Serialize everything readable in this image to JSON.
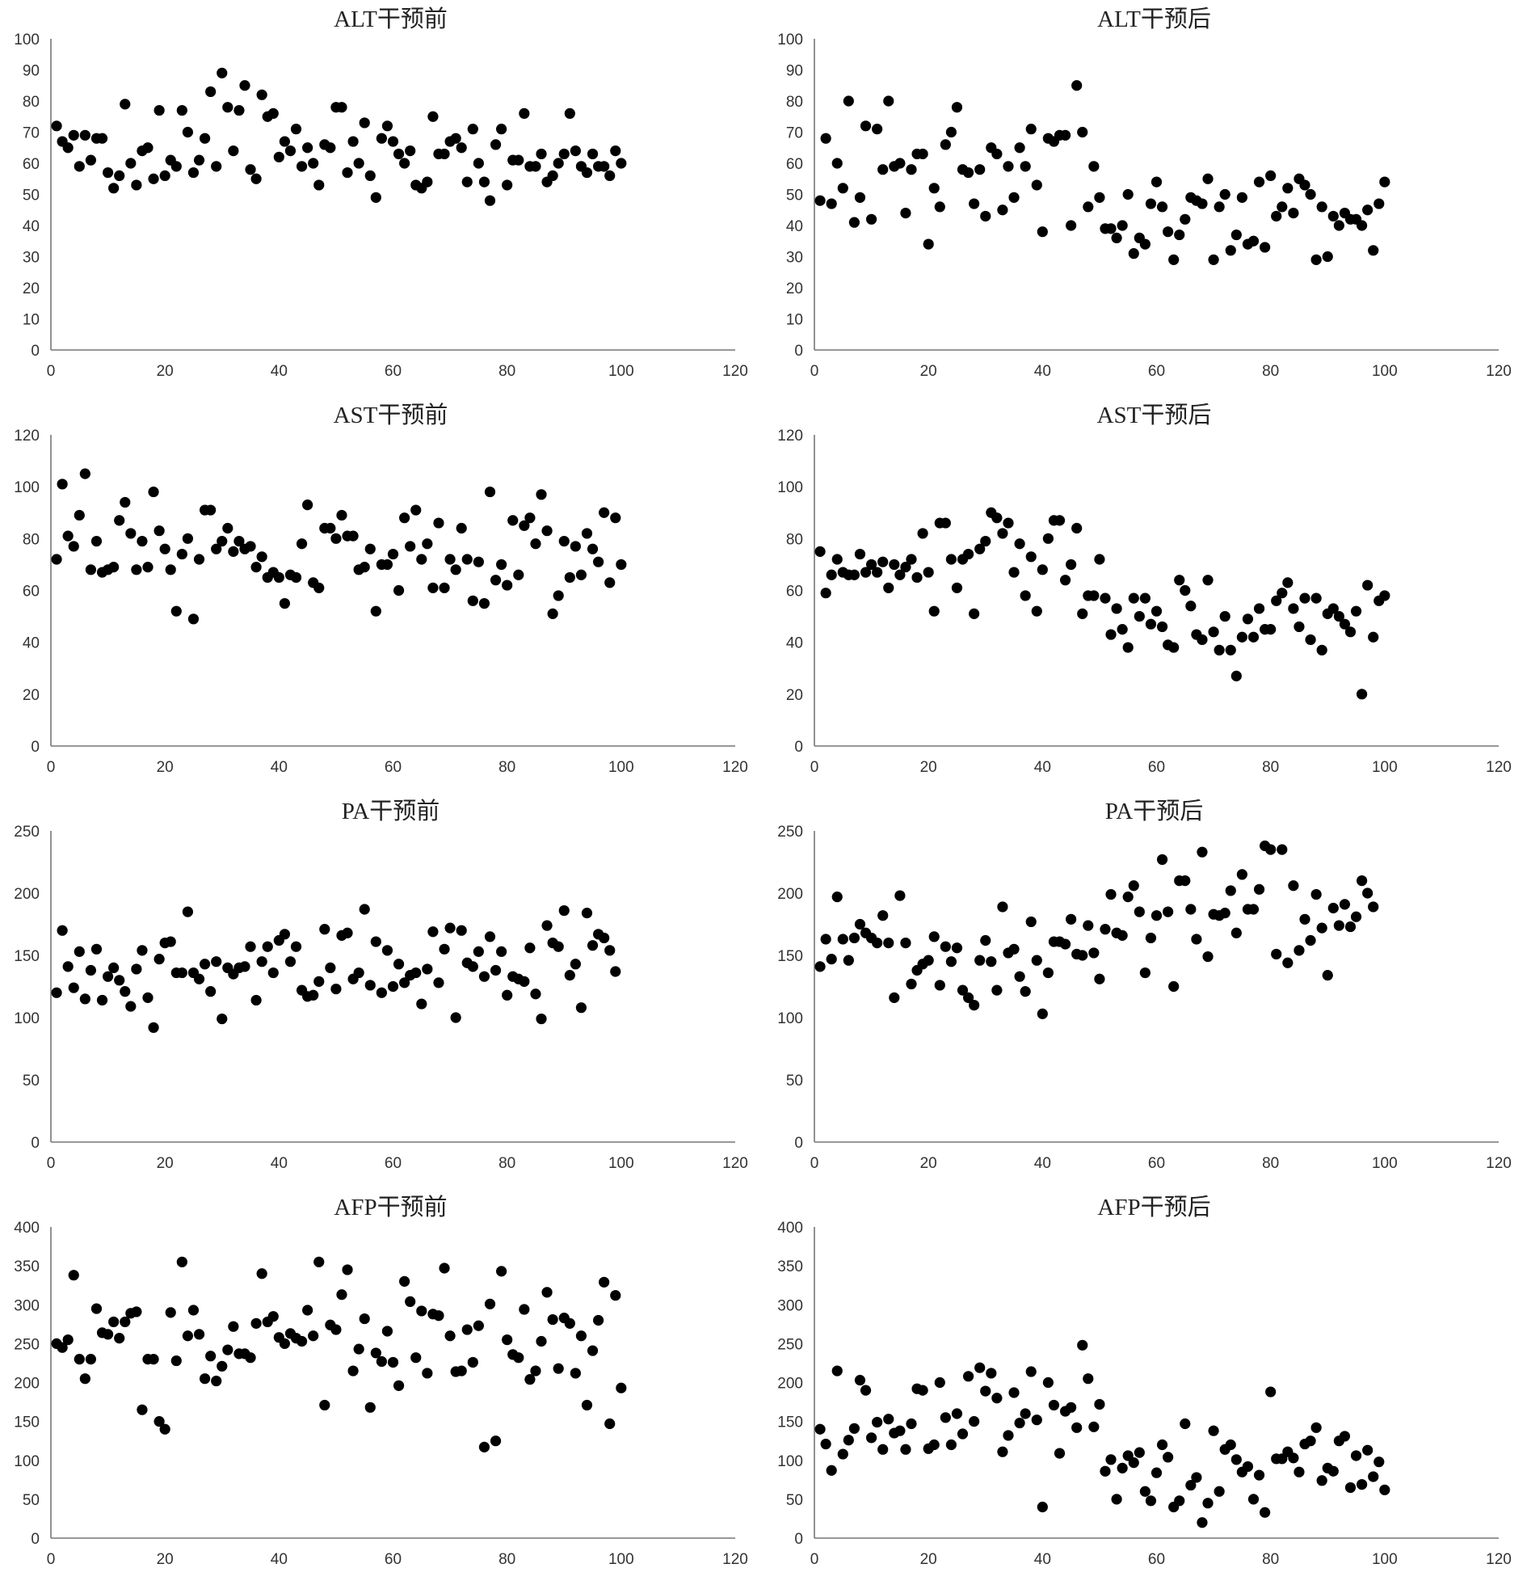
{
  "chart_data": [
    {
      "type": "scatter",
      "title": "ALT干预前",
      "xlim": [
        0,
        120
      ],
      "ylim": [
        0,
        100
      ],
      "xticks": [
        0,
        20,
        40,
        60,
        80,
        100,
        120
      ],
      "yticks": [
        0,
        10,
        20,
        30,
        40,
        50,
        60,
        70,
        80,
        90,
        100
      ],
      "grid": false,
      "legend": "none",
      "marker_color": "#000000",
      "y": [
        72,
        67,
        65,
        69,
        59,
        69,
        61,
        68,
        68,
        57,
        52,
        56,
        79,
        60,
        53,
        64,
        65,
        55,
        77,
        56,
        61,
        59,
        77,
        70,
        57,
        61,
        68,
        83,
        59,
        89,
        78,
        64,
        77,
        85,
        58,
        55,
        82,
        75,
        76,
        62,
        67,
        64,
        71,
        59,
        65,
        60,
        53,
        66,
        65,
        78,
        78,
        57,
        67,
        60,
        73,
        56,
        49,
        68,
        72,
        67,
        63,
        60,
        64,
        53,
        52,
        54,
        75,
        63,
        63,
        67,
        68,
        65,
        54,
        71,
        60,
        54,
        48,
        66,
        71,
        53,
        61,
        61,
        76,
        59,
        59,
        63,
        54,
        56,
        60,
        63,
        76,
        64,
        59,
        57,
        63,
        59,
        59,
        56,
        64,
        60
      ]
    },
    {
      "type": "scatter",
      "title": "ALT干预后",
      "xlim": [
        0,
        120
      ],
      "ylim": [
        0,
        100
      ],
      "xticks": [
        0,
        20,
        40,
        60,
        80,
        100,
        120
      ],
      "yticks": [
        0,
        10,
        20,
        30,
        40,
        50,
        60,
        70,
        80,
        90,
        100
      ],
      "grid": false,
      "legend": "none",
      "marker_color": "#000000",
      "y": [
        48,
        68,
        47,
        60,
        52,
        80,
        41,
        49,
        72,
        42,
        71,
        58,
        80,
        59,
        60,
        44,
        58,
        63,
        63,
        34,
        52,
        46,
        66,
        70,
        78,
        58,
        57,
        47,
        58,
        43,
        65,
        63,
        45,
        59,
        49,
        65,
        59,
        71,
        53,
        38,
        68,
        67,
        69,
        69,
        40,
        85,
        70,
        46,
        59,
        49,
        39,
        39,
        36,
        40,
        50,
        31,
        36,
        34,
        47,
        54,
        46,
        38,
        29,
        37,
        42,
        49,
        48,
        47,
        55,
        29,
        46,
        50,
        32,
        37,
        49,
        34,
        35,
        54,
        33,
        56,
        43,
        46,
        52,
        44,
        55,
        53,
        50,
        29,
        46,
        30,
        43,
        40,
        44,
        42,
        42,
        40,
        45,
        32,
        47,
        54
      ]
    },
    {
      "type": "scatter",
      "title": "AST干预前",
      "xlim": [
        0,
        120
      ],
      "ylim": [
        0,
        120
      ],
      "xticks": [
        0,
        20,
        40,
        60,
        80,
        100,
        120
      ],
      "yticks": [
        0,
        20,
        40,
        60,
        80,
        100,
        120
      ],
      "grid": false,
      "legend": "none",
      "marker_color": "#000000",
      "y": [
        72,
        101,
        81,
        77,
        89,
        105,
        68,
        79,
        67,
        68,
        69,
        87,
        94,
        82,
        68,
        79,
        69,
        98,
        83,
        76,
        68,
        52,
        74,
        80,
        49,
        72,
        91,
        91,
        76,
        79,
        84,
        75,
        79,
        76,
        77,
        69,
        73,
        65,
        67,
        65,
        55,
        66,
        65,
        78,
        93,
        63,
        61,
        84,
        84,
        80,
        89,
        81,
        81,
        68,
        69,
        76,
        52,
        70,
        70,
        74,
        60,
        88,
        77,
        91,
        72,
        78,
        61,
        86,
        61,
        72,
        68,
        84,
        72,
        56,
        71,
        55,
        98,
        64,
        70,
        62,
        87,
        66,
        85,
        88,
        78,
        97,
        83,
        51,
        58,
        79,
        65,
        77,
        66,
        82,
        76,
        71,
        90,
        63,
        88,
        70
      ]
    },
    {
      "type": "scatter",
      "title": "AST干预后",
      "xlim": [
        0,
        120
      ],
      "ylim": [
        0,
        120
      ],
      "xticks": [
        0,
        20,
        40,
        60,
        80,
        100,
        120
      ],
      "yticks": [
        0,
        20,
        40,
        60,
        80,
        100,
        120
      ],
      "grid": false,
      "legend": "none",
      "marker_color": "#000000",
      "y": [
        75,
        59,
        66,
        72,
        67,
        66,
        66,
        74,
        67,
        70,
        67,
        71,
        61,
        70,
        66,
        69,
        72,
        65,
        82,
        67,
        52,
        86,
        86,
        72,
        61,
        72,
        74,
        51,
        76,
        79,
        90,
        88,
        82,
        86,
        67,
        78,
        58,
        73,
        52,
        68,
        80,
        87,
        87,
        64,
        70,
        84,
        51,
        58,
        58,
        72,
        57,
        43,
        53,
        45,
        38,
        57,
        50,
        57,
        47,
        52,
        46,
        39,
        38,
        64,
        60,
        54,
        43,
        41,
        64,
        44,
        37,
        50,
        37,
        27,
        42,
        49,
        42,
        53,
        45,
        45,
        56,
        59,
        63,
        53,
        46,
        57,
        41,
        57,
        37,
        51,
        53,
        50,
        47,
        44,
        52,
        20,
        62,
        42,
        56,
        58
      ]
    },
    {
      "type": "scatter",
      "title": "PA干预前",
      "xlim": [
        0,
        120
      ],
      "ylim": [
        0,
        250
      ],
      "xticks": [
        0,
        20,
        40,
        60,
        80,
        100,
        120
      ],
      "yticks": [
        0,
        50,
        100,
        150,
        200,
        250
      ],
      "grid": false,
      "legend": "none",
      "marker_color": "#000000",
      "y": [
        120,
        170,
        141,
        124,
        153,
        115,
        138,
        155,
        114,
        133,
        140,
        130,
        121,
        109,
        139,
        154,
        116,
        92,
        147,
        160,
        161,
        136,
        136,
        185,
        136,
        131,
        143,
        121,
        145,
        99,
        140,
        135,
        140,
        141,
        157,
        114,
        145,
        157,
        136,
        162,
        167,
        145,
        157,
        122,
        117,
        118,
        129,
        171,
        140,
        123,
        166,
        168,
        131,
        136,
        187,
        126,
        161,
        120,
        154,
        125,
        143,
        128,
        134,
        136,
        111,
        139,
        169,
        128,
        155,
        172,
        100,
        170,
        144,
        141,
        153,
        133,
        165,
        138,
        153,
        118,
        133,
        131,
        129,
        156,
        119,
        99,
        174,
        160,
        157,
        186,
        134,
        143,
        108,
        184,
        158,
        167,
        164,
        154,
        137
      ]
    },
    {
      "type": "scatter",
      "title": "PA干预后",
      "xlim": [
        0,
        120
      ],
      "ylim": [
        0,
        250
      ],
      "xticks": [
        0,
        20,
        40,
        60,
        80,
        100,
        120
      ],
      "yticks": [
        0,
        50,
        100,
        150,
        200,
        250
      ],
      "grid": false,
      "legend": "none",
      "marker_color": "#000000",
      "y": [
        141,
        163,
        147,
        197,
        163,
        146,
        164,
        175,
        168,
        164,
        160,
        182,
        160,
        116,
        198,
        160,
        127,
        138,
        143,
        146,
        165,
        126,
        157,
        145,
        156,
        122,
        116,
        110,
        146,
        162,
        145,
        122,
        189,
        152,
        155,
        133,
        121,
        177,
        146,
        103,
        136,
        161,
        161,
        159,
        179,
        151,
        150,
        174,
        152,
        131,
        171,
        199,
        168,
        166,
        197,
        206,
        185,
        136,
        164,
        182,
        227,
        185,
        125,
        210,
        210,
        187,
        163,
        233,
        149,
        183,
        182,
        184,
        202,
        168,
        215,
        187,
        187,
        203,
        238,
        235,
        151,
        235,
        144,
        206,
        154,
        179,
        162,
        199,
        172,
        134,
        188,
        174,
        191,
        173,
        181,
        210,
        200,
        189
      ]
    },
    {
      "type": "scatter",
      "title": "AFP干预前",
      "xlim": [
        0,
        120
      ],
      "ylim": [
        0,
        400
      ],
      "xticks": [
        0,
        20,
        40,
        60,
        80,
        100,
        120
      ],
      "yticks": [
        0,
        50,
        100,
        150,
        200,
        250,
        300,
        350,
        400
      ],
      "grid": false,
      "legend": "none",
      "marker_color": "#000000",
      "y": [
        250,
        245,
        255,
        338,
        230,
        205,
        230,
        295,
        264,
        262,
        278,
        257,
        278,
        289,
        291,
        165,
        230,
        230,
        150,
        140,
        290,
        228,
        355,
        260,
        293,
        262,
        205,
        234,
        202,
        221,
        242,
        272,
        237,
        237,
        232,
        276,
        340,
        278,
        285,
        258,
        250,
        263,
        257,
        253,
        293,
        260,
        355,
        171,
        274,
        268,
        313,
        345,
        215,
        243,
        282,
        168,
        238,
        227,
        266,
        226,
        196,
        330,
        304,
        232,
        292,
        212,
        288,
        286,
        347,
        260,
        214,
        215,
        268,
        226,
        273,
        117,
        301,
        125,
        343,
        255,
        236,
        232,
        294,
        204,
        215,
        253,
        316,
        281,
        218,
        283,
        276,
        212,
        260,
        171,
        241,
        280,
        329,
        147,
        312,
        193
      ]
    },
    {
      "type": "scatter",
      "title": "AFP干预后",
      "xlim": [
        0,
        120
      ],
      "ylim": [
        0,
        400
      ],
      "xticks": [
        0,
        20,
        40,
        60,
        80,
        100,
        120
      ],
      "yticks": [
        0,
        50,
        100,
        150,
        200,
        250,
        300,
        350,
        400
      ],
      "grid": false,
      "legend": "none",
      "marker_color": "#000000",
      "y": [
        140,
        121,
        87,
        215,
        108,
        126,
        141,
        203,
        190,
        129,
        149,
        114,
        153,
        135,
        138,
        114,
        147,
        192,
        190,
        115,
        120,
        200,
        155,
        120,
        160,
        134,
        208,
        150,
        219,
        189,
        212,
        180,
        111,
        132,
        187,
        148,
        160,
        214,
        152,
        40,
        200,
        171,
        109,
        163,
        168,
        142,
        248,
        205,
        143,
        172,
        86,
        101,
        50,
        90,
        106,
        97,
        110,
        60,
        48,
        84,
        120,
        104,
        40,
        48,
        147,
        68,
        78,
        20,
        45,
        138,
        60,
        114,
        120,
        101,
        85,
        92,
        50,
        81,
        33,
        188,
        102,
        102,
        111,
        103,
        85,
        121,
        125,
        142,
        74,
        90,
        86,
        125,
        131,
        65,
        106,
        69,
        113,
        79,
        98,
        62
      ]
    }
  ]
}
